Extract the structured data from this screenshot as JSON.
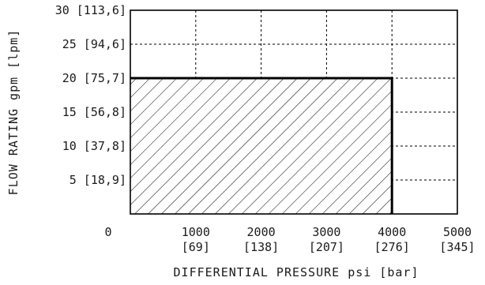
{
  "chart_data": {
    "type": "area",
    "xlabel": "DIFFERENTIAL PRESSURE psi [bar]",
    "ylabel": "FLOW RATING gpm [lpm]",
    "xlim": [
      0,
      5000
    ],
    "ylim": [
      0,
      30
    ],
    "grid": true,
    "x_ticks": [
      {
        "value": 0,
        "label": "0",
        "sublabel": ""
      },
      {
        "value": 1000,
        "label": "1000",
        "sublabel": "[69]"
      },
      {
        "value": 2000,
        "label": "2000",
        "sublabel": "[138]"
      },
      {
        "value": 3000,
        "label": "3000",
        "sublabel": "[207]"
      },
      {
        "value": 4000,
        "label": "4000",
        "sublabel": "[276]"
      },
      {
        "value": 5000,
        "label": "5000",
        "sublabel": "[345]"
      }
    ],
    "y_ticks": [
      {
        "value": 5,
        "label": "5 [18,9]"
      },
      {
        "value": 10,
        "label": "10 [37,8]"
      },
      {
        "value": 15,
        "label": "15 [56,8]"
      },
      {
        "value": 20,
        "label": "20 [75,7]"
      },
      {
        "value": 25,
        "label": "25 [94,6]"
      },
      {
        "value": 30,
        "label": "30 [113,6]"
      }
    ],
    "region": {
      "fill": "hatched",
      "x": [
        0,
        4000
      ],
      "y": [
        0,
        20
      ]
    },
    "colors": {
      "line": "#000000",
      "grid": "#000000",
      "hatch": "#000000"
    }
  }
}
